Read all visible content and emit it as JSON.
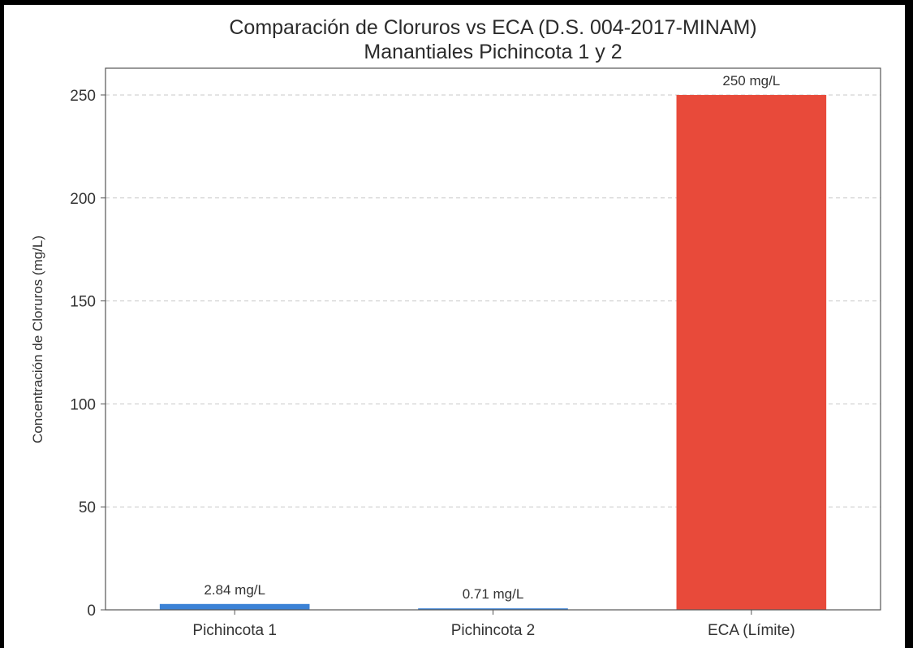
{
  "chart_data": {
    "type": "bar",
    "title": "Comparación de Cloruros vs ECA (D.S. 004-2017-MINAM)",
    "subtitle": "Manantiales Pichincota 1 y 2",
    "xlabel": "",
    "ylabel": "Concentración de Cloruros (mg/L)",
    "categories": [
      "Pichincota 1",
      "Pichincota 2",
      "ECA (Límite)"
    ],
    "values": [
      2.84,
      0.71,
      250
    ],
    "data_labels": [
      "2.84 mg/L",
      "0.71 mg/L",
      "250 mg/L"
    ],
    "colors": [
      "#3b82d6",
      "#3b82d6",
      "#e84a3a"
    ],
    "ylim": [
      0,
      263
    ],
    "yticks": [
      0,
      50,
      100,
      150,
      200,
      250
    ],
    "grid": "horizontal dashed"
  }
}
